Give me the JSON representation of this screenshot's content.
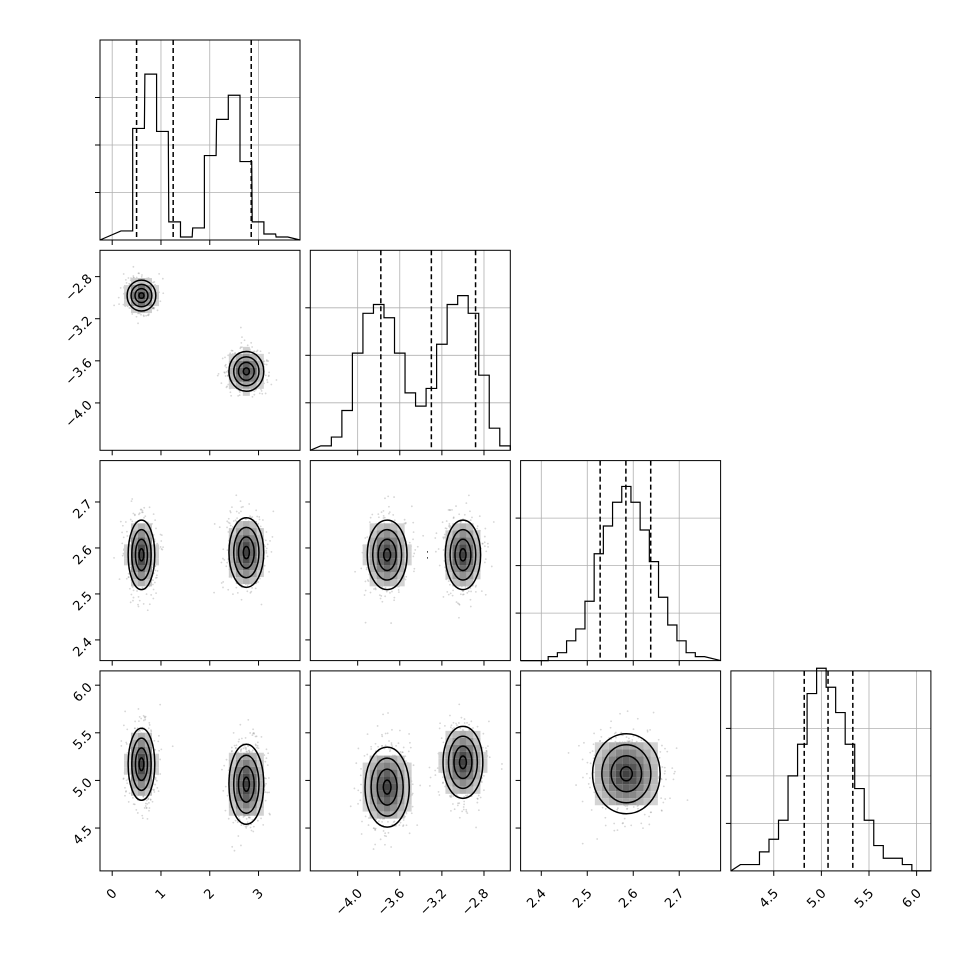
{
  "chart_data": {
    "type": "corner",
    "grid": true,
    "parameters": [
      {
        "range": [
          -0.25,
          3.85
        ],
        "ticks": [
          "0",
          "1",
          "2",
          "3"
        ],
        "tick_values": [
          0,
          1,
          2,
          3
        ],
        "quantiles": [
          0.5,
          1.25,
          2.85
        ],
        "histogram": {
          "ymax": 63,
          "bins": [
            0.3,
            0.54,
            0.79,
            1.03,
            1.28,
            1.52,
            1.77,
            2.01,
            2.26,
            2.5,
            2.74,
            2.99,
            3.23,
            3.48
          ],
          "counts": [
            3,
            37,
            55,
            36,
            6,
            1,
            4,
            28,
            40,
            48,
            26,
            6,
            2,
            1
          ]
        }
      },
      {
        "range": [
          -4.45,
          -2.55
        ],
        "ticks": [
          "−4.0",
          "−3.6",
          "−3.2",
          "−2.8"
        ],
        "tick_values": [
          -4.0,
          -3.6,
          -3.2,
          -2.8
        ],
        "quantiles": [
          -3.78,
          -3.3,
          -2.88
        ],
        "histogram": {
          "ymax": 43,
          "bins": [
            -4.3,
            -4.2,
            -4.1,
            -4.0,
            -3.9,
            -3.8,
            -3.7,
            -3.6,
            -3.5,
            -3.4,
            -3.3,
            -3.2,
            -3.1,
            -3.0,
            -2.9,
            -2.8,
            -2.7,
            -2.6
          ],
          "counts": [
            1,
            3,
            9,
            22,
            31,
            33,
            30,
            22,
            13,
            10,
            14,
            24,
            33,
            35,
            31,
            17,
            5,
            1
          ]
        }
      },
      {
        "range": [
          2.355,
          2.79
        ],
        "ticks": [
          "2.4",
          "2.5",
          "2.6",
          "2.7"
        ],
        "tick_values": [
          2.4,
          2.5,
          2.6,
          2.7
        ],
        "quantiles": [
          2.528,
          2.584,
          2.638
        ],
        "histogram": {
          "ymax": 48,
          "bins": [
            2.405,
            2.425,
            2.445,
            2.465,
            2.485,
            2.505,
            2.525,
            2.545,
            2.565,
            2.585,
            2.605,
            2.625,
            2.645,
            2.665,
            2.685,
            2.705,
            2.725,
            2.745
          ],
          "counts": [
            0,
            1,
            2,
            5,
            8,
            15,
            27,
            34,
            40,
            44,
            40,
            33,
            25,
            16,
            9,
            5,
            2,
            1
          ]
        }
      },
      {
        "range": [
          4.05,
          6.15
        ],
        "ticks": [
          "4.5",
          "5.0",
          "5.5",
          "6.0"
        ],
        "tick_values": [
          4.5,
          5.0,
          5.5,
          6.0
        ],
        "quantiles": [
          4.82,
          5.07,
          5.33
        ],
        "histogram": {
          "ymax": 30,
          "bins": [
            4.2,
            4.3,
            4.4,
            4.5,
            4.6,
            4.7,
            4.8,
            4.9,
            5.0,
            5.1,
            5.2,
            5.3,
            5.4,
            5.5,
            5.6,
            5.7,
            5.8,
            5.9,
            6.0
          ],
          "counts": [
            1,
            1,
            3,
            5,
            8,
            15,
            20,
            28,
            32,
            29,
            25,
            20,
            13,
            8,
            4,
            2,
            2,
            1,
            0
          ]
        }
      }
    ],
    "pairs": [
      {
        "row": 1,
        "col": 0,
        "clusters": [
          {
            "center": [
              0.6,
              -2.98
            ],
            "spread": [
              0.14,
              0.07
            ]
          },
          {
            "center": [
              2.75,
              -3.7
            ],
            "spread": [
              0.17,
              0.09
            ]
          }
        ]
      },
      {
        "row": 2,
        "col": 0,
        "clusters": [
          {
            "center": [
              0.6,
              2.585
            ],
            "spread": [
              0.13,
              0.036
            ]
          },
          {
            "center": [
              2.75,
              2.59
            ],
            "spread": [
              0.17,
              0.036
            ]
          }
        ]
      },
      {
        "row": 2,
        "col": 1,
        "clusters": [
          {
            "center": [
              -3.72,
              2.585
            ],
            "spread": [
              0.09,
              0.036
            ]
          },
          {
            "center": [
              -3.0,
              2.585
            ],
            "spread": [
              0.08,
              0.036
            ]
          }
        ]
      },
      {
        "row": 3,
        "col": 0,
        "clusters": [
          {
            "center": [
              0.6,
              5.17
            ],
            "spread": [
              0.13,
              0.18
            ]
          },
          {
            "center": [
              2.75,
              4.96
            ],
            "spread": [
              0.17,
              0.2
            ]
          }
        ]
      },
      {
        "row": 3,
        "col": 1,
        "clusters": [
          {
            "center": [
              -3.72,
              4.93
            ],
            "spread": [
              0.1,
              0.2
            ]
          },
          {
            "center": [
              -3.0,
              5.19
            ],
            "spread": [
              0.09,
              0.18
            ]
          }
        ]
      },
      {
        "row": 3,
        "col": 2,
        "clusters": [
          {
            "center": [
              2.585,
              5.07
            ],
            "spread": [
              0.035,
              0.2
            ]
          }
        ]
      }
    ]
  }
}
